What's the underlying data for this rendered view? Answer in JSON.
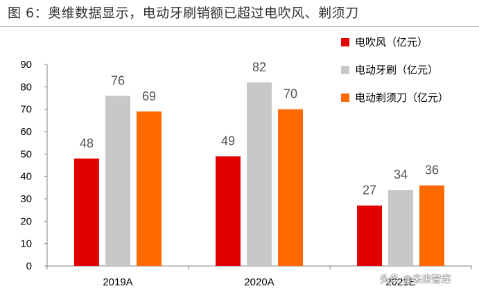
{
  "figure_title": "图 6：奥维数据显示，电动牙刷销额已超过电吹风、剃须刀",
  "watermark": "头条 @未来智库",
  "colors": {
    "hair_dryer": "#e00000",
    "toothbrush": "#c8c8c8",
    "shaver": "#ff6a00",
    "axis": "#808080"
  },
  "chart_data": {
    "type": "bar",
    "categories": [
      "2019A",
      "2020A",
      "2021E"
    ],
    "series": [
      {
        "name": "电吹风（亿元）",
        "values": [
          48,
          49,
          27
        ],
        "color": "#e00000"
      },
      {
        "name": "电动牙刷（亿元）",
        "values": [
          76,
          82,
          34
        ],
        "color": "#c8c8c8"
      },
      {
        "name": "电动剃须刀（亿元）",
        "values": [
          69,
          70,
          36
        ],
        "color": "#ff6a00"
      }
    ],
    "ylim": [
      0,
      90
    ],
    "yticks": [
      0,
      10,
      20,
      30,
      40,
      50,
      60,
      70,
      80,
      90
    ],
    "grid": false,
    "legend_position": "top-right"
  }
}
